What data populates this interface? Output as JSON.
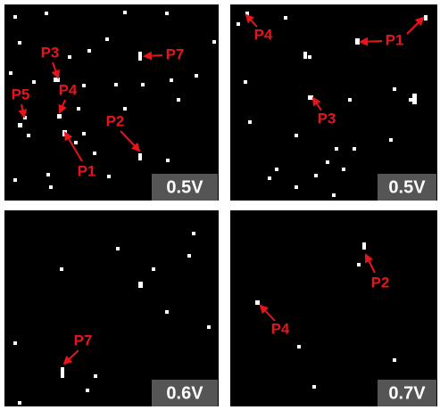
{
  "panels": [
    {
      "voltage": "0.5V",
      "labels": [
        "P3",
        "P7",
        "P5",
        "P4",
        "P2",
        "P1"
      ]
    },
    {
      "voltage": "0.5V",
      "labels": [
        "P4",
        "P1",
        "P3"
      ]
    },
    {
      "voltage": "0.6V",
      "labels": [
        "P7"
      ]
    },
    {
      "voltage": "0.7V",
      "labels": [
        "P2",
        "P4"
      ]
    }
  ]
}
